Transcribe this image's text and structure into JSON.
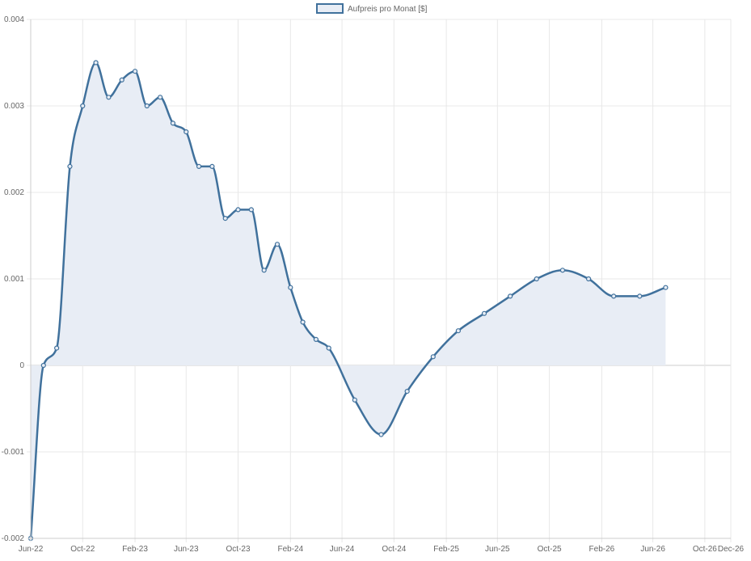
{
  "chart_data": {
    "type": "area",
    "title": "",
    "xlabel": "",
    "ylabel": "",
    "legend": {
      "position": "top",
      "label": "Aufpreis pro Monat [$]"
    },
    "colors": {
      "line": "#40719c",
      "fill": "#e8edf5",
      "grid": "#e8e8e8",
      "zero_line": "#cccccc",
      "text": "#666666"
    },
    "grid": true,
    "ylim": [
      -0.002,
      0.004
    ],
    "y_ticks": [
      {
        "value": -0.002,
        "label": "-0.002"
      },
      {
        "value": -0.001,
        "label": "-0.001"
      },
      {
        "value": 0,
        "label": "0"
      },
      {
        "value": 0.001,
        "label": "0.001"
      },
      {
        "value": 0.002,
        "label": "0.002"
      },
      {
        "value": 0.003,
        "label": "0.003"
      },
      {
        "value": 0.004,
        "label": "0.004"
      }
    ],
    "x_range": [
      "2022-06-01",
      "2026-12-01"
    ],
    "x_ticks": [
      {
        "date": "2022-06-01",
        "label": "Jun-22"
      },
      {
        "date": "2022-10-01",
        "label": "Oct-22"
      },
      {
        "date": "2023-02-01",
        "label": "Feb-23"
      },
      {
        "date": "2023-06-01",
        "label": "Jun-23"
      },
      {
        "date": "2023-10-01",
        "label": "Oct-23"
      },
      {
        "date": "2024-02-01",
        "label": "Feb-24"
      },
      {
        "date": "2024-06-01",
        "label": "Jun-24"
      },
      {
        "date": "2024-10-01",
        "label": "Oct-24"
      },
      {
        "date": "2025-02-01",
        "label": "Feb-25"
      },
      {
        "date": "2025-06-01",
        "label": "Jun-25"
      },
      {
        "date": "2025-10-01",
        "label": "Oct-25"
      },
      {
        "date": "2026-02-01",
        "label": "Feb-26"
      },
      {
        "date": "2026-06-01",
        "label": "Jun-26"
      },
      {
        "date": "2026-10-01",
        "label": "Oct-26"
      },
      {
        "date": "2026-12-01",
        "label": "Dec-26"
      }
    ],
    "series": [
      {
        "name": "Aufpreis pro Monat [$]",
        "points": [
          {
            "x": "2022-06-01",
            "y": -0.002
          },
          {
            "x": "2022-07-01",
            "y": 0.0
          },
          {
            "x": "2022-08-01",
            "y": 0.0002
          },
          {
            "x": "2022-09-01",
            "y": 0.0023
          },
          {
            "x": "2022-10-01",
            "y": 0.003
          },
          {
            "x": "2022-11-01",
            "y": 0.0035
          },
          {
            "x": "2022-12-01",
            "y": 0.0031
          },
          {
            "x": "2023-01-01",
            "y": 0.0033
          },
          {
            "x": "2023-02-01",
            "y": 0.0034
          },
          {
            "x": "2023-03-01",
            "y": 0.003
          },
          {
            "x": "2023-04-01",
            "y": 0.0031
          },
          {
            "x": "2023-05-01",
            "y": 0.0028
          },
          {
            "x": "2023-06-01",
            "y": 0.0027
          },
          {
            "x": "2023-07-01",
            "y": 0.0023
          },
          {
            "x": "2023-08-01",
            "y": 0.0023
          },
          {
            "x": "2023-09-01",
            "y": 0.0017
          },
          {
            "x": "2023-10-01",
            "y": 0.0018
          },
          {
            "x": "2023-11-01",
            "y": 0.0018
          },
          {
            "x": "2023-12-01",
            "y": 0.0011
          },
          {
            "x": "2024-01-01",
            "y": 0.0014
          },
          {
            "x": "2024-02-01",
            "y": 0.0009
          },
          {
            "x": "2024-03-01",
            "y": 0.0005
          },
          {
            "x": "2024-04-01",
            "y": 0.0003
          },
          {
            "x": "2024-05-01",
            "y": 0.0002
          },
          {
            "x": "2024-07-01",
            "y": -0.0004
          },
          {
            "x": "2024-09-01",
            "y": -0.0008
          },
          {
            "x": "2024-11-01",
            "y": -0.0003
          },
          {
            "x": "2025-01-01",
            "y": 0.0001
          },
          {
            "x": "2025-03-01",
            "y": 0.0004
          },
          {
            "x": "2025-05-01",
            "y": 0.0006
          },
          {
            "x": "2025-07-01",
            "y": 0.0008
          },
          {
            "x": "2025-09-01",
            "y": 0.001
          },
          {
            "x": "2025-11-01",
            "y": 0.0011
          },
          {
            "x": "2026-01-01",
            "y": 0.001
          },
          {
            "x": "2026-03-01",
            "y": 0.0008
          },
          {
            "x": "2026-05-01",
            "y": 0.0008
          },
          {
            "x": "2026-07-01",
            "y": 0.0009
          }
        ]
      }
    ]
  }
}
